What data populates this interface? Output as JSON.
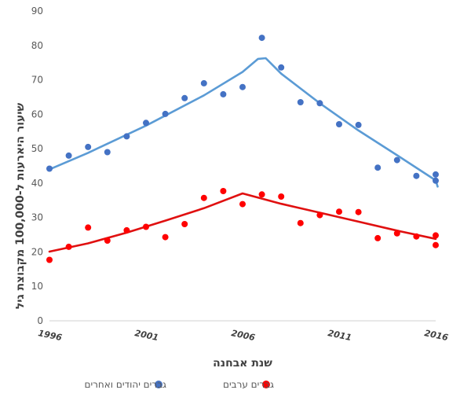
{
  "chart_data": {
    "type": "scatter",
    "xlabel": "שנת אבחנה",
    "ylabel": "שיעור היארעות ל-100,000 מקבוצת גיל",
    "xlim": [
      1996,
      2016
    ],
    "ylim": [
      0,
      90
    ],
    "yticks": [
      0,
      10,
      20,
      30,
      40,
      50,
      60,
      70,
      80,
      90
    ],
    "xticks": [
      1996,
      2001,
      2006,
      2011,
      2016
    ],
    "grid": false,
    "legend_position": "bottom",
    "series": [
      {
        "name": "גברים יהודים ואחרים",
        "color": "#4472C4",
        "trend_color": "#5B9BD5",
        "x": [
          1996,
          1997,
          1998,
          1999,
          2000,
          2001,
          2002,
          2003,
          2004,
          2005,
          2006,
          2007,
          2008,
          2009,
          2010,
          2011,
          2012,
          2013,
          2014,
          2015,
          2016,
          2016
        ],
        "values": [
          44.2,
          48.0,
          50.5,
          49.0,
          53.6,
          57.5,
          60.1,
          64.7,
          69.0,
          65.8,
          67.9,
          82.2,
          73.6,
          63.5,
          63.2,
          57.1,
          56.9,
          44.5,
          46.7,
          42.1,
          42.5,
          40.7
        ],
        "trend": [
          [
            1996,
            44.0
          ],
          [
            1998,
            48.8
          ],
          [
            2001,
            56.7
          ],
          [
            2004,
            65.5
          ],
          [
            2006,
            72.3
          ],
          [
            2006.8,
            76.1
          ],
          [
            2007.2,
            76.3
          ],
          [
            2008,
            71.8
          ],
          [
            2010,
            63.2
          ],
          [
            2012,
            55.3
          ],
          [
            2014,
            48.1
          ],
          [
            2016,
            40.8
          ],
          [
            2016.1,
            39.0
          ]
        ]
      },
      {
        "name": "גברים ערבים",
        "color": "#FF0000",
        "trend_color": "#E01010",
        "x": [
          1996,
          1997,
          1998,
          1999,
          2000,
          2001,
          2002,
          2003,
          2004,
          2005,
          2006,
          2007,
          2008,
          2009,
          2010,
          2011,
          2012,
          2013,
          2014,
          2015,
          2016,
          2016
        ],
        "values": [
          17.7,
          21.5,
          27.1,
          23.3,
          26.3,
          27.3,
          24.3,
          28.1,
          35.7,
          37.7,
          33.9,
          36.7,
          36.1,
          28.4,
          30.7,
          31.7,
          31.6,
          24.0,
          25.4,
          24.5,
          24.8,
          22.0
        ],
        "trend": [
          [
            1996,
            20.1
          ],
          [
            1998,
            22.5
          ],
          [
            2000,
            25.6
          ],
          [
            2002,
            29.1
          ],
          [
            2004,
            32.7
          ],
          [
            2006,
            37.0
          ],
          [
            2008,
            34.0
          ],
          [
            2010,
            31.4
          ],
          [
            2012,
            28.8
          ],
          [
            2014,
            26.2
          ],
          [
            2016,
            23.8
          ]
        ]
      }
    ]
  }
}
